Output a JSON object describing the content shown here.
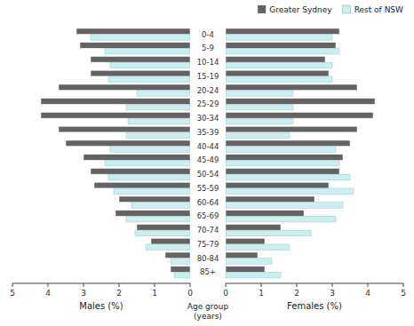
{
  "chart_data": [
    {
      "type": "bar",
      "orientation": "horizontal",
      "x_label": "Males (%)",
      "categories": [
        "85+",
        "80-84",
        "75-79",
        "70-74",
        "65-69",
        "60-64",
        "55-59",
        "50-54",
        "45-49",
        "40-44",
        "35-39",
        "30-34",
        "25-29",
        "20-24",
        "15-19",
        "10-14",
        "5-9",
        "0-4"
      ],
      "series": [
        {
          "name": "Greater Sydney",
          "color": "#636363",
          "values": [
            0.55,
            0.7,
            1.1,
            1.5,
            2.1,
            2.0,
            2.7,
            2.8,
            3.0,
            3.5,
            3.7,
            4.2,
            4.2,
            3.7,
            2.8,
            2.8,
            3.1,
            3.2
          ]
        },
        {
          "name": "Rest of NSW",
          "color": "#c8f0f0",
          "values": [
            0.45,
            0.55,
            1.25,
            1.55,
            1.8,
            1.65,
            2.15,
            2.3,
            2.4,
            2.25,
            1.8,
            1.75,
            1.8,
            1.5,
            2.3,
            2.25,
            2.4,
            2.8
          ]
        }
      ],
      "xlim": [
        5,
        0
      ],
      "xticks": [
        5,
        4,
        3,
        2,
        1,
        0
      ],
      "grid": false
    },
    {
      "type": "bar",
      "orientation": "horizontal",
      "x_label": "Females (%)",
      "y_label": "Age group\n(years)",
      "categories": [
        "85+",
        "80-84",
        "75-79",
        "70-74",
        "65-69",
        "60-64",
        "55-59",
        "50-54",
        "45-49",
        "40-44",
        "35-39",
        "30-34",
        "25-29",
        "20-24",
        "15-19",
        "10-14",
        "5-9",
        "0-4"
      ],
      "series": [
        {
          "name": "Greater Sydney",
          "color": "#636363",
          "values": [
            1.1,
            0.9,
            1.1,
            1.55,
            2.2,
            2.5,
            2.9,
            3.2,
            3.3,
            3.5,
            3.7,
            4.15,
            4.2,
            3.7,
            2.9,
            2.8,
            3.1,
            3.2
          ]
        },
        {
          "name": "Rest of NSW",
          "color": "#c8f0f0",
          "values": [
            1.55,
            1.3,
            1.8,
            2.4,
            3.1,
            3.3,
            3.6,
            3.5,
            3.2,
            3.1,
            1.8,
            1.9,
            1.9,
            1.9,
            3.0,
            3.0,
            3.2,
            3.0
          ]
        }
      ],
      "xlim": [
        0,
        5
      ],
      "xticks": [
        0,
        1,
        2,
        3,
        4,
        5
      ],
      "grid": false,
      "legend": "upper right"
    }
  ]
}
